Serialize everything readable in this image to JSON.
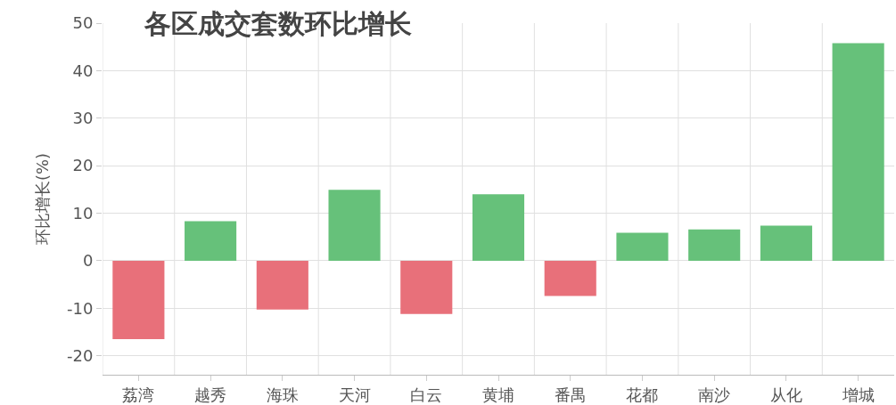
{
  "chart_data": {
    "type": "bar",
    "title": "各区成交套数环比增长",
    "ylabel": "环比增长(%)",
    "categories": [
      "荔湾",
      "越秀",
      "海珠",
      "天河",
      "白云",
      "黄埔",
      "番禺",
      "花都",
      "南沙",
      "从化",
      "增城"
    ],
    "values": [
      -16.5,
      8.3,
      -10.3,
      14.9,
      -11.2,
      14.0,
      -7.4,
      5.9,
      6.6,
      7.4,
      45.8
    ],
    "colors": [
      "#e8707a",
      "#66c17a",
      "#e8707a",
      "#66c17a",
      "#e8707a",
      "#66c17a",
      "#e8707a",
      "#66c17a",
      "#66c17a",
      "#66c17a",
      "#66c17a"
    ],
    "ylim": [
      -24,
      50
    ],
    "yticks": [
      -20,
      -10,
      0,
      10,
      20,
      30,
      40,
      50
    ],
    "grid": true
  }
}
